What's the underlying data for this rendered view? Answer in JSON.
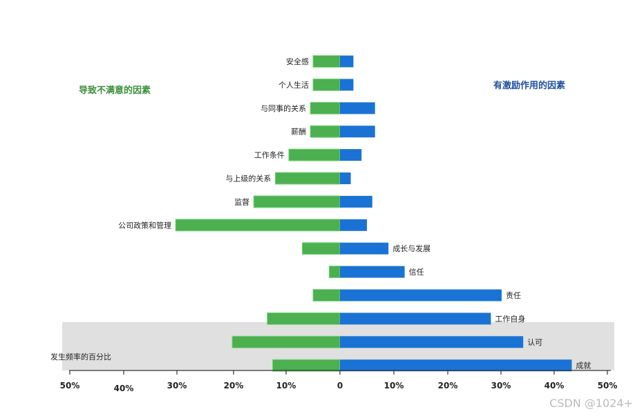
{
  "chart_data": {
    "type": "bar",
    "left_heading": "导致不满意的因素",
    "right_heading": "有激励作用的因素",
    "axis_label": "发生频率的百分比",
    "x_ticks": [
      "50%",
      "40%",
      "30%",
      "20%",
      "10%",
      "0",
      "10%",
      "20%",
      "30%",
      "40%",
      "50%"
    ],
    "xlim": [
      -50,
      50
    ],
    "watermark": "CSDN @1024+",
    "colors": {
      "dissatisfier": "#4caf50",
      "motivator": "#1a73d4",
      "highlight": "#e0e0e0"
    },
    "factors": [
      {
        "label": "安全感",
        "side": "left",
        "dissatisfier": 5,
        "motivator": 2.5
      },
      {
        "label": "个人生活",
        "side": "left",
        "dissatisfier": 5,
        "motivator": 2.5
      },
      {
        "label": "与同事的关系",
        "side": "left",
        "dissatisfier": 5.5,
        "motivator": 6.5
      },
      {
        "label": "薪酬",
        "side": "left",
        "dissatisfier": 5.5,
        "motivator": 6.5
      },
      {
        "label": "工作条件",
        "side": "left",
        "dissatisfier": 9.5,
        "motivator": 4
      },
      {
        "label": "与上级的关系",
        "side": "left",
        "dissatisfier": 12,
        "motivator": 2
      },
      {
        "label": "监督",
        "side": "left",
        "dissatisfier": 16,
        "motivator": 6
      },
      {
        "label": "公司政策和管理",
        "side": "left",
        "dissatisfier": 30.5,
        "motivator": 5
      },
      {
        "label": "成长与发展",
        "side": "right",
        "dissatisfier": 7,
        "motivator": 9
      },
      {
        "label": "信任",
        "side": "right",
        "dissatisfier": 2,
        "motivator": 12
      },
      {
        "label": "责任",
        "side": "right",
        "dissatisfier": 5,
        "motivator": 30
      },
      {
        "label": "工作自身",
        "side": "right",
        "dissatisfier": 13.5,
        "motivator": 28
      },
      {
        "label": "认可",
        "side": "right",
        "dissatisfier": 20,
        "motivator": 34
      },
      {
        "label": "成就",
        "side": "right",
        "dissatisfier": 12.5,
        "motivator": 43
      }
    ],
    "highlighted_factors": [
      "认可",
      "成就"
    ]
  }
}
